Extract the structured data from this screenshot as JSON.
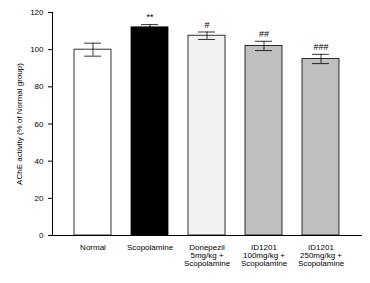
{
  "chart_data": {
    "type": "bar",
    "y_label": "AChE activity (% of Normal group)",
    "categories": [
      "Normal",
      "Scopolamine",
      "Donepezil\n5mg/kg +\nScopolamine",
      "ID1201\n100mg/kg +\nScopolamine",
      "ID1201\n250mg/kg +\nScopolamine"
    ],
    "values": [
      100,
      112,
      107.5,
      102,
      95
    ],
    "errors": [
      3.5,
      1.5,
      2,
      2.5,
      2.5
    ],
    "annotations": [
      "",
      "**",
      "#",
      "##",
      "###"
    ],
    "colors": [
      "#ffffff",
      "#000000",
      "#f2f2f2",
      "#bfbfbf",
      "#bfbfbf"
    ],
    "ylim": [
      0,
      120
    ],
    "yticks": [
      0,
      20,
      40,
      60,
      80,
      100,
      120
    ],
    "grid": false
  }
}
